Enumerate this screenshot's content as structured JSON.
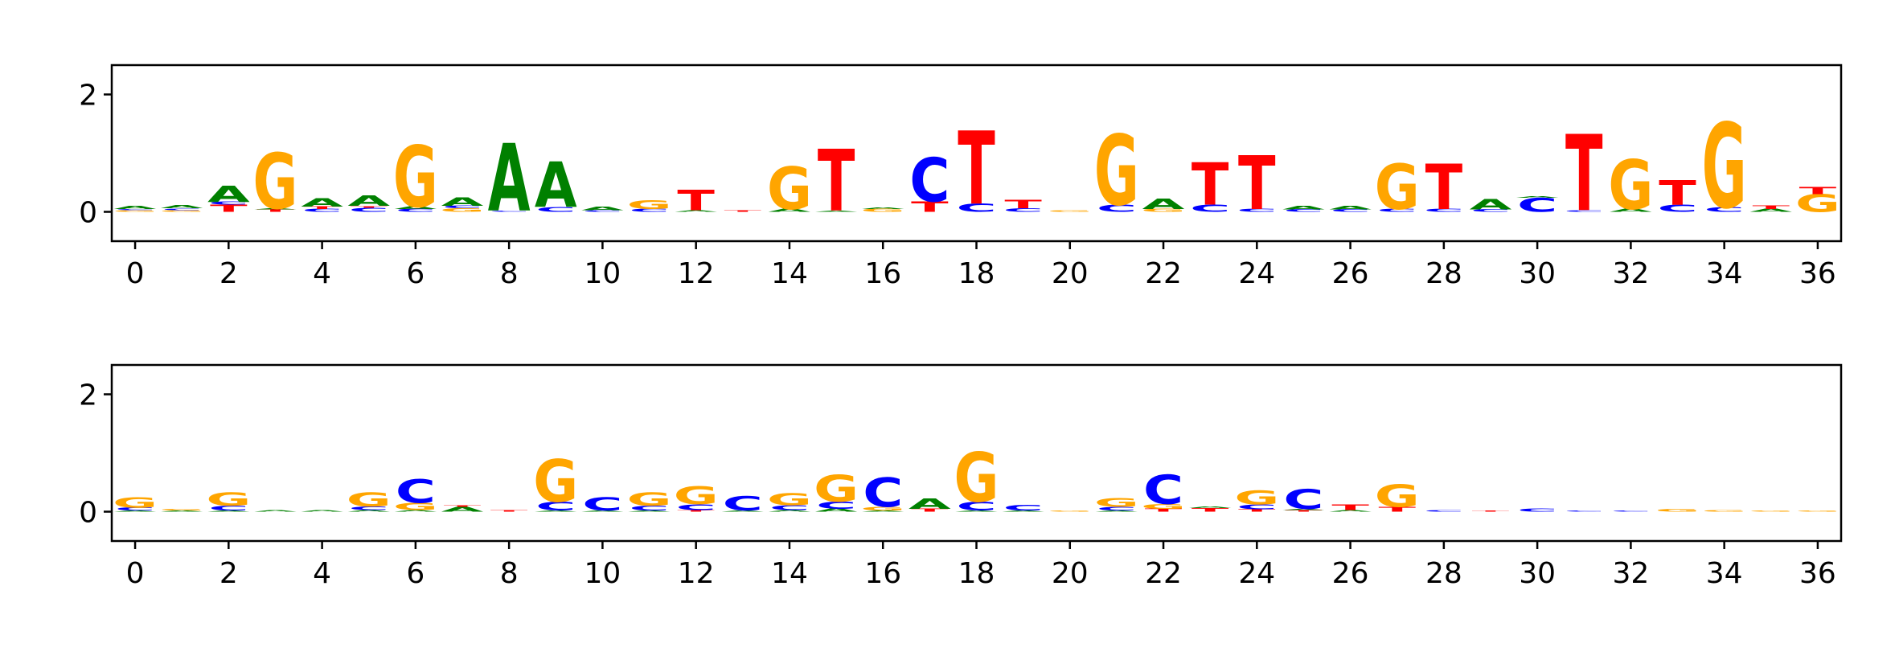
{
  "chart_data": [
    {
      "type": "sequence-logo",
      "title": "",
      "xlabel": "",
      "ylabel": "",
      "xlim": [
        -0.5,
        36.5
      ],
      "ylim": [
        -0.5,
        2.5
      ],
      "xticks": [
        "0",
        "2",
        "4",
        "6",
        "8",
        "10",
        "12",
        "14",
        "16",
        "18",
        "20",
        "22",
        "24",
        "26",
        "28",
        "30",
        "32",
        "34",
        "36"
      ],
      "yticks": [
        "0",
        "2"
      ],
      "colors": {
        "A": "#008000",
        "C": "#0000ff",
        "G": "#ffa500",
        "T": "#ff0000"
      },
      "positions": [
        [
          [
            "G",
            0.03
          ],
          [
            "C",
            0.02
          ],
          [
            "A",
            0.05
          ]
        ],
        [
          [
            "G",
            0.03
          ],
          [
            "C",
            0.03
          ],
          [
            "A",
            0.05
          ]
        ],
        [
          [
            "T",
            0.12
          ],
          [
            "C",
            0.05
          ],
          [
            "A",
            0.28
          ]
        ],
        [
          [
            "T",
            0.04
          ],
          [
            "A",
            0.02
          ],
          [
            "G",
            0.95
          ]
        ],
        [
          [
            "C",
            0.05
          ],
          [
            "T",
            0.04
          ],
          [
            "A",
            0.14
          ]
        ],
        [
          [
            "C",
            0.07
          ],
          [
            "T",
            0.03
          ],
          [
            "A",
            0.18
          ]
        ],
        [
          [
            "C",
            0.05
          ],
          [
            "A",
            0.04
          ],
          [
            "G",
            1.05
          ]
        ],
        [
          [
            "G",
            0.06
          ],
          [
            "C",
            0.04
          ],
          [
            "A",
            0.14
          ]
        ],
        [
          [
            "C",
            0.02
          ],
          [
            "A",
            1.15
          ]
        ],
        [
          [
            "C",
            0.08
          ],
          [
            "A",
            0.78
          ]
        ],
        [
          [
            "C",
            0.03
          ],
          [
            "A",
            0.06
          ]
        ],
        [
          [
            "C",
            0.05
          ],
          [
            "G",
            0.15
          ]
        ],
        [
          [
            "A",
            0.03
          ],
          [
            "T",
            0.35
          ]
        ],
        [
          [
            "T",
            0.03
          ]
        ],
        [
          [
            "A",
            0.05
          ],
          [
            "G",
            0.72
          ]
        ],
        [
          [
            "A",
            0.02
          ],
          [
            "T",
            1.05
          ]
        ],
        [
          [
            "G",
            0.05
          ],
          [
            "A",
            0.03
          ]
        ],
        [
          [
            "T",
            0.18
          ],
          [
            "C",
            0.75
          ]
        ],
        [
          [
            "C",
            0.14
          ],
          [
            "T",
            1.25
          ]
        ],
        [
          [
            "C",
            0.06
          ],
          [
            "T",
            0.14
          ]
        ],
        [
          [
            "G",
            0.03
          ]
        ],
        [
          [
            "C",
            0.12
          ],
          [
            "G",
            1.2
          ]
        ],
        [
          [
            "G",
            0.05
          ],
          [
            "A",
            0.18
          ]
        ],
        [
          [
            "C",
            0.12
          ],
          [
            "T",
            0.72
          ]
        ],
        [
          [
            "C",
            0.05
          ],
          [
            "T",
            0.92
          ]
        ],
        [
          [
            "C",
            0.04
          ],
          [
            "A",
            0.06
          ]
        ],
        [
          [
            "C",
            0.04
          ],
          [
            "A",
            0.06
          ]
        ],
        [
          [
            "C",
            0.05
          ],
          [
            "G",
            0.78
          ]
        ],
        [
          [
            "C",
            0.05
          ],
          [
            "T",
            0.78
          ]
        ],
        [
          [
            "C",
            0.04
          ],
          [
            "A",
            0.18
          ]
        ],
        [
          [
            "C",
            0.24
          ],
          [
            "A",
            0.03
          ]
        ],
        [
          [
            "C",
            0.03
          ],
          [
            "T",
            1.3
          ]
        ],
        [
          [
            "A",
            0.05
          ],
          [
            "G",
            0.85
          ]
        ],
        [
          [
            "C",
            0.12
          ],
          [
            "T",
            0.42
          ]
        ],
        [
          [
            "C",
            0.08
          ],
          [
            "G",
            1.45
          ]
        ],
        [
          [
            "A",
            0.05
          ],
          [
            "T",
            0.06
          ]
        ],
        [
          [
            "G",
            0.3
          ],
          [
            "T",
            0.12
          ]
        ]
      ]
    },
    {
      "type": "sequence-logo",
      "title": "",
      "xlabel": "",
      "ylabel": "",
      "xlim": [
        -0.5,
        36.5
      ],
      "ylim": [
        -0.5,
        2.5
      ],
      "xticks": [
        "0",
        "2",
        "4",
        "6",
        "8",
        "10",
        "12",
        "14",
        "16",
        "18",
        "20",
        "22",
        "24",
        "26",
        "28",
        "30",
        "32",
        "34",
        "36"
      ],
      "yticks": [
        "0",
        "2"
      ],
      "colors": {
        "A": "#008000",
        "C": "#0000ff",
        "G": "#ffa500",
        "T": "#ff0000"
      },
      "positions": [
        [
          [
            "A",
            0.02
          ],
          [
            "C",
            0.05
          ],
          [
            "G",
            0.18
          ]
        ],
        [
          [
            "A",
            0.02
          ],
          [
            "G",
            0.03
          ]
        ],
        [
          [
            "A",
            0.02
          ],
          [
            "C",
            0.08
          ],
          [
            "G",
            0.22
          ]
        ],
        [
          [
            "A",
            0.03
          ]
        ],
        [
          [
            "A",
            0.03
          ]
        ],
        [
          [
            "A",
            0.03
          ],
          [
            "C",
            0.06
          ],
          [
            "G",
            0.24
          ]
        ],
        [
          [
            "A",
            0.03
          ],
          [
            "G",
            0.12
          ],
          [
            "C",
            0.4
          ]
        ],
        [
          [
            "A",
            0.08
          ],
          [
            "T",
            0.03
          ]
        ],
        [
          [
            "T",
            0.03
          ]
        ],
        [
          [
            "A",
            0.02
          ],
          [
            "C",
            0.15
          ],
          [
            "G",
            0.72
          ]
        ],
        [
          [
            "A",
            0.02
          ],
          [
            "C",
            0.22
          ]
        ],
        [
          [
            "A",
            0.02
          ],
          [
            "C",
            0.08
          ],
          [
            "G",
            0.22
          ]
        ],
        [
          [
            "T",
            0.03
          ],
          [
            "C",
            0.1
          ],
          [
            "G",
            0.3
          ]
        ],
        [
          [
            "A",
            0.02
          ],
          [
            "C",
            0.25
          ]
        ],
        [
          [
            "A",
            0.03
          ],
          [
            "C",
            0.08
          ],
          [
            "G",
            0.2
          ]
        ],
        [
          [
            "A",
            0.05
          ],
          [
            "C",
            0.12
          ],
          [
            "G",
            0.45
          ]
        ],
        [
          [
            "A",
            0.02
          ],
          [
            "G",
            0.06
          ],
          [
            "C",
            0.5
          ]
        ],
        [
          [
            "T",
            0.05
          ],
          [
            "A",
            0.18
          ]
        ],
        [
          [
            "A",
            0.02
          ],
          [
            "C",
            0.15
          ],
          [
            "G",
            0.85
          ]
        ],
        [
          [
            "A",
            0.02
          ],
          [
            "C",
            0.1
          ]
        ],
        [
          [
            "G",
            0.02
          ]
        ],
        [
          [
            "A",
            0.02
          ],
          [
            "C",
            0.06
          ],
          [
            "G",
            0.15
          ]
        ],
        [
          [
            "T",
            0.05
          ],
          [
            "G",
            0.08
          ],
          [
            "C",
            0.5
          ]
        ],
        [
          [
            "T",
            0.06
          ],
          [
            "A",
            0.03
          ]
        ],
        [
          [
            "T",
            0.04
          ],
          [
            "C",
            0.08
          ],
          [
            "G",
            0.24
          ]
        ],
        [
          [
            "T",
            0.03
          ],
          [
            "A",
            0.02
          ],
          [
            "C",
            0.34
          ]
        ],
        [
          [
            "A",
            0.03
          ],
          [
            "T",
            0.1
          ]
        ],
        [
          [
            "T",
            0.08
          ],
          [
            "G",
            0.38
          ]
        ],
        [
          [
            "C",
            0.03
          ]
        ],
        [
          [
            "T",
            0.02
          ]
        ],
        [
          [
            "C",
            0.05
          ]
        ],
        [
          [
            "C",
            0.02
          ]
        ],
        [
          [
            "C",
            0.02
          ]
        ],
        [
          [
            "G",
            0.04
          ]
        ],
        [
          [
            "G",
            0.03
          ]
        ],
        [
          [
            "G",
            0.02
          ]
        ],
        [
          [
            "G",
            0.02
          ]
        ]
      ]
    }
  ]
}
